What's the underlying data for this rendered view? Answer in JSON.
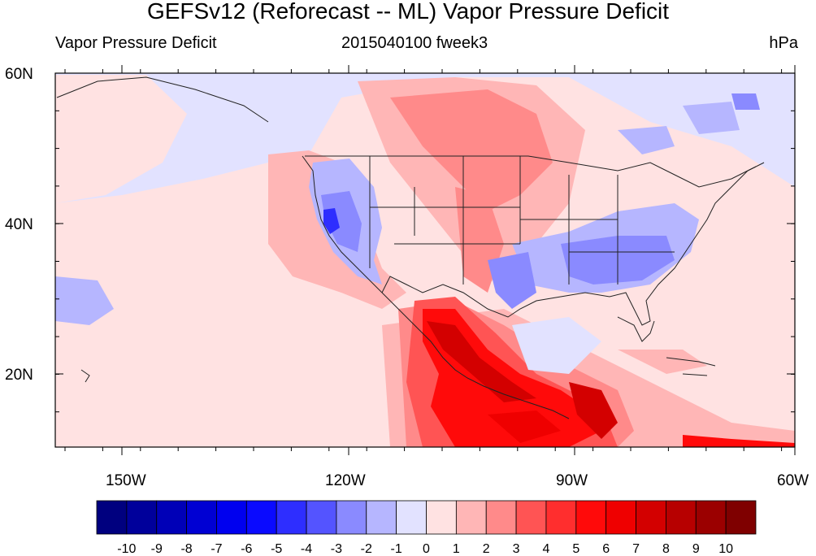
{
  "title": "GEFSv12 (Reforecast -- ML) Vapor Pressure Deficit",
  "subtitle_left": "Vapor Pressure Deficit",
  "subtitle_center": "2015040100 fweek3",
  "subtitle_right": "hPa",
  "lat_labels": [
    "60N",
    "40N",
    "20N"
  ],
  "lon_labels": [
    "150W",
    "120W",
    "90W",
    "60W"
  ],
  "colorbar": {
    "labels": [
      "-10",
      "-9",
      "-8",
      "-7",
      "-6",
      "-5",
      "-4",
      "-3",
      "-2",
      "-1",
      "0",
      "1",
      "2",
      "3",
      "4",
      "5",
      "6",
      "7",
      "8",
      "9",
      "10"
    ],
    "colors": [
      "#00007f",
      "#00009b",
      "#0000b7",
      "#0000d3",
      "#0000ef",
      "#0a0aff",
      "#2e2eff",
      "#5454ff",
      "#8a8aff",
      "#b6b6ff",
      "#e2e2ff",
      "#ffe2e2",
      "#ffb6b6",
      "#ff8a8a",
      "#ff5454",
      "#ff2e2e",
      "#ff0a0a",
      "#ef0000",
      "#d30000",
      "#b70000",
      "#9b0000",
      "#7f0000"
    ]
  }
}
